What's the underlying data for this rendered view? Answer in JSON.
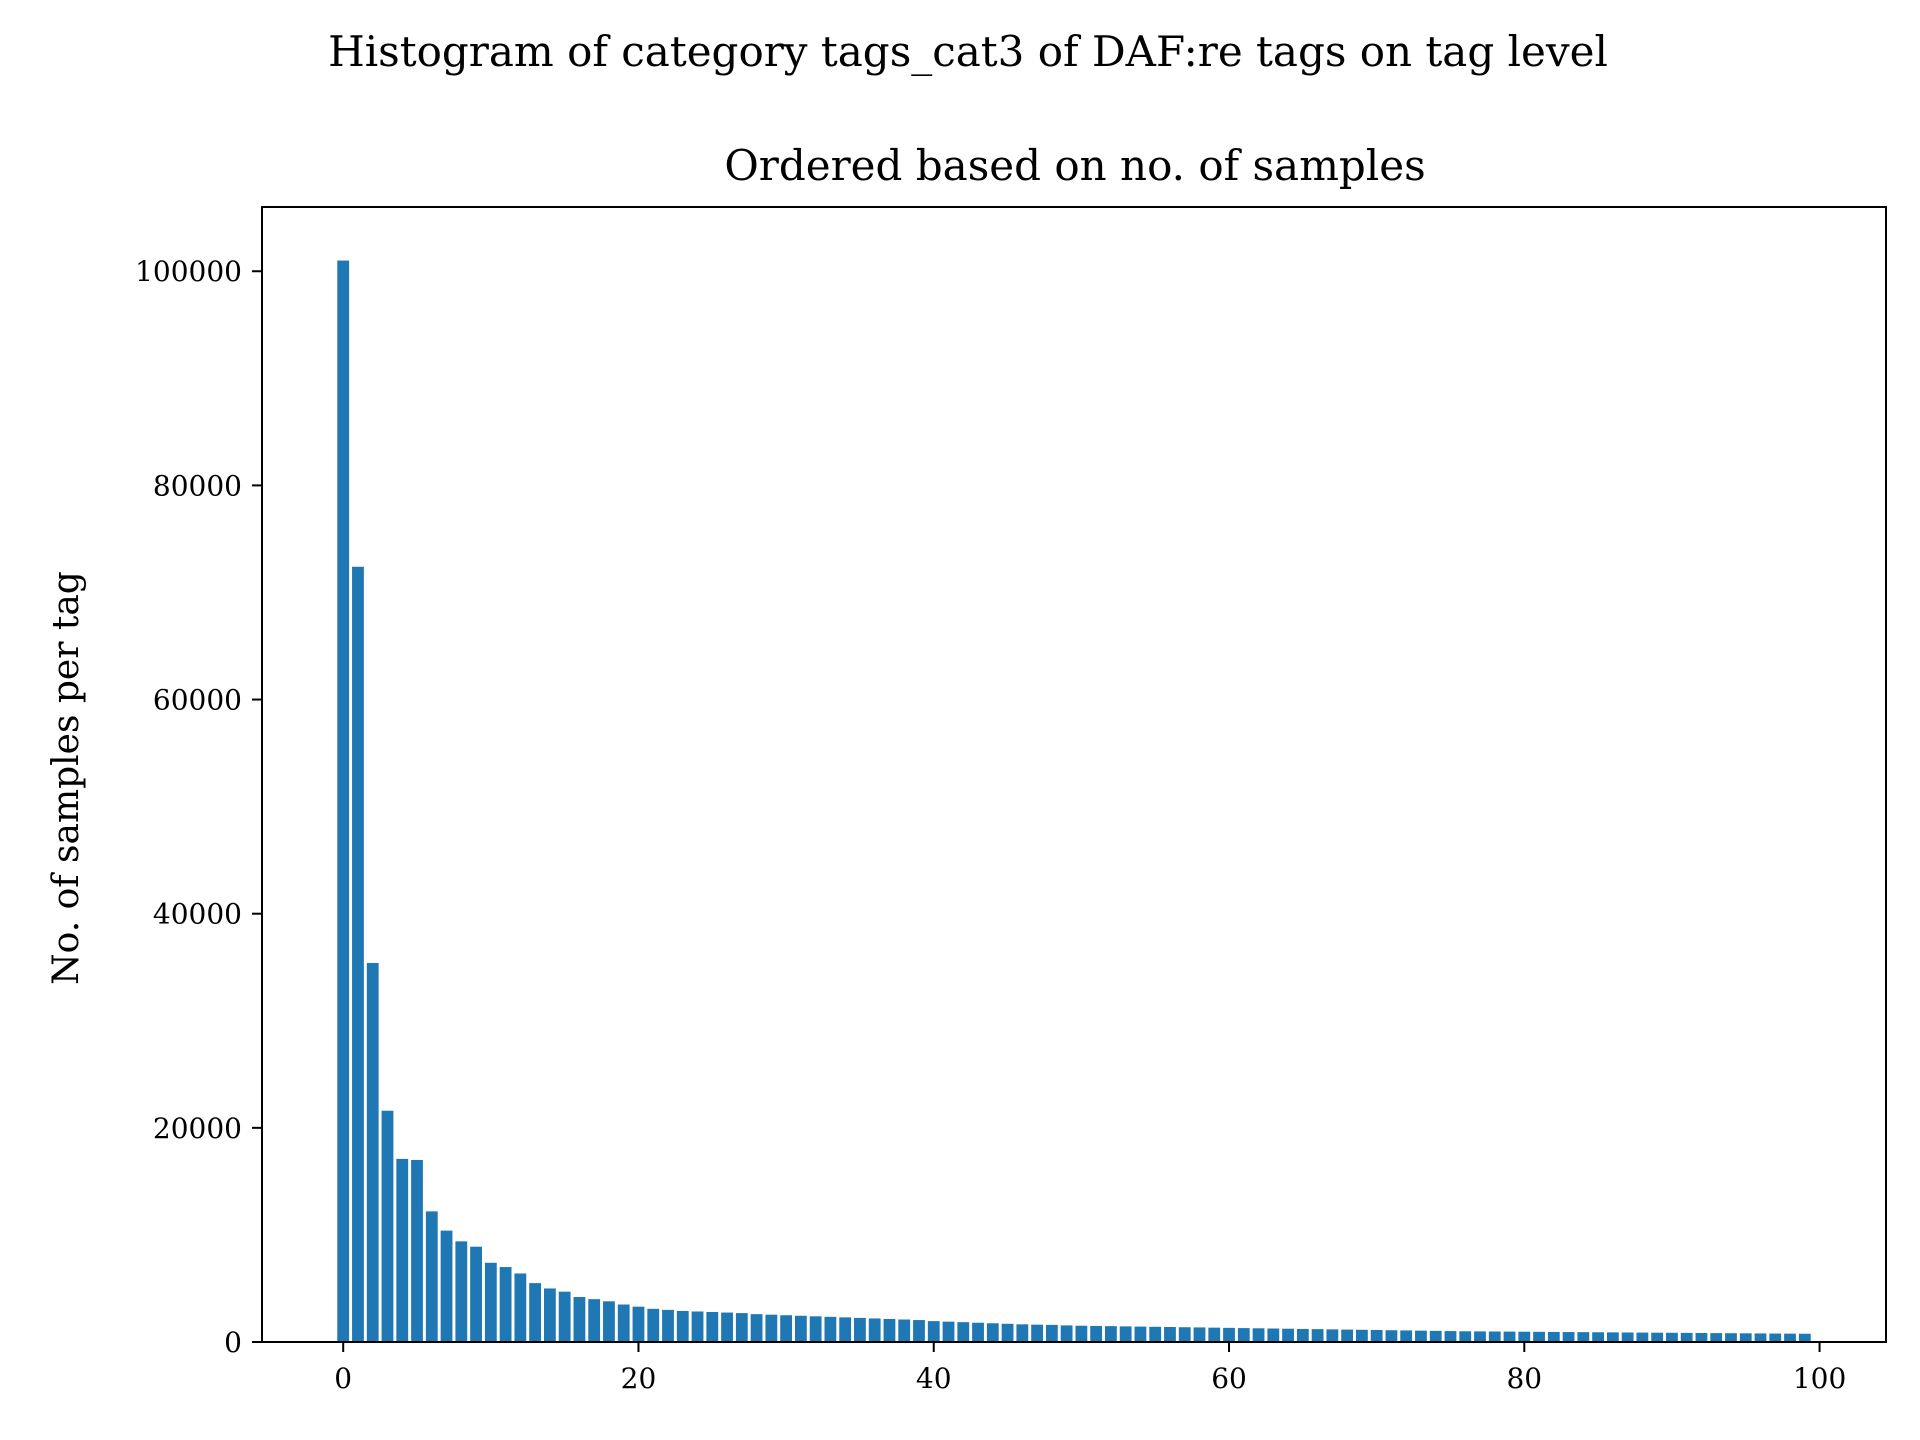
{
  "chart_data": {
    "type": "bar",
    "title": "Histogram of category tags_cat3 of DAF:re tags on tag level",
    "subtitle": "Ordered based on no. of samples",
    "xlabel": "",
    "ylabel": "No. of samples per tag",
    "xlim": [
      -5.5,
      104.5
    ],
    "ylim": [
      0,
      106000
    ],
    "xticks": [
      0,
      20,
      40,
      60,
      80,
      100
    ],
    "yticks": [
      0,
      20000,
      40000,
      60000,
      80000,
      100000
    ],
    "grid": false,
    "legend": "none",
    "bar_color": "#1f77b4",
    "x": [
      0,
      1,
      2,
      3,
      4,
      5,
      6,
      7,
      8,
      9,
      10,
      11,
      12,
      13,
      14,
      15,
      16,
      17,
      18,
      19,
      20,
      21,
      22,
      23,
      24,
      25,
      26,
      27,
      28,
      29,
      30,
      31,
      32,
      33,
      34,
      35,
      36,
      37,
      38,
      39,
      40,
      41,
      42,
      43,
      44,
      45,
      46,
      47,
      48,
      49,
      50,
      51,
      52,
      53,
      54,
      55,
      56,
      57,
      58,
      59,
      60,
      61,
      62,
      63,
      64,
      65,
      66,
      67,
      68,
      69,
      70,
      71,
      72,
      73,
      74,
      75,
      76,
      77,
      78,
      79,
      80,
      81,
      82,
      83,
      84,
      85,
      86,
      87,
      88,
      89,
      90,
      91,
      92,
      93,
      94,
      95,
      96,
      97,
      98,
      99
    ],
    "values": [
      101000,
      72400,
      35400,
      21600,
      17100,
      17000,
      12200,
      10400,
      9400,
      8900,
      7400,
      7000,
      6400,
      5500,
      5000,
      4700,
      4200,
      4000,
      3800,
      3500,
      3300,
      3100,
      3000,
      2900,
      2850,
      2800,
      2750,
      2700,
      2600,
      2550,
      2500,
      2450,
      2400,
      2350,
      2300,
      2250,
      2200,
      2150,
      2100,
      2050,
      1950,
      1900,
      1850,
      1800,
      1750,
      1700,
      1650,
      1620,
      1600,
      1550,
      1520,
      1500,
      1480,
      1460,
      1440,
      1420,
      1400,
      1380,
      1360,
      1340,
      1320,
      1300,
      1280,
      1260,
      1240,
      1220,
      1200,
      1180,
      1160,
      1140,
      1120,
      1100,
      1080,
      1060,
      1040,
      1020,
      1000,
      990,
      980,
      970,
      960,
      950,
      940,
      930,
      920,
      910,
      900,
      890,
      880,
      870,
      860,
      850,
      840,
      830,
      820,
      810,
      800,
      790,
      780,
      770
    ]
  }
}
